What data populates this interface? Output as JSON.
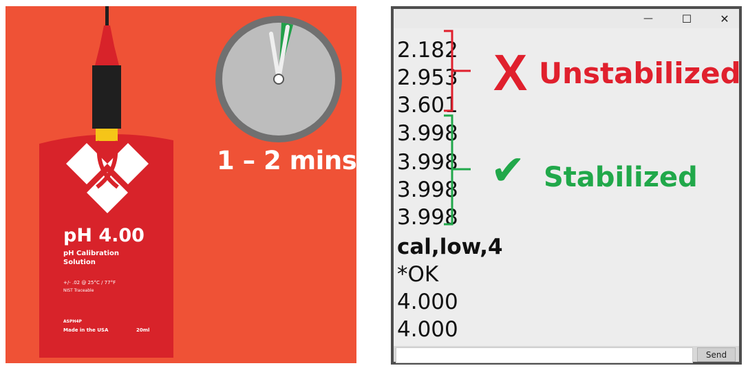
{
  "illustration": {
    "pouch": {
      "title": "pH 4.00",
      "subtitle_line1": "pH Calibration",
      "subtitle_line2": "Solution",
      "spec": "+/- .02 @ 25°C / 77°F",
      "traceable": "NIST Traceable",
      "sku": "ASPH4P",
      "origin": "Made in the USA",
      "volume": "20ml"
    },
    "timer_label": "1 – 2 mins"
  },
  "serial_monitor": {
    "controls": {
      "minimize": "—",
      "maximize": "☐",
      "close": "✕"
    },
    "lines": [
      "2.182",
      "2.953",
      "3.601",
      "3.998",
      "3.998",
      "3.998",
      "3.998",
      "cal,low,4",
      "*OK",
      "4.000",
      "4.000"
    ],
    "input_value": "",
    "send_label": "Send",
    "annotations": {
      "unstable_mark": "X",
      "unstable_label": "Unstabilized",
      "stable_mark": "✔",
      "stable_label": "Stabilized",
      "unstable_color": "#e0202d",
      "stable_color": "#21a84a"
    }
  },
  "colors": {
    "background": "#ef5236",
    "pouch": "#d8232a",
    "probe": "#1f1f1f",
    "probe_tip": "#f5c518"
  }
}
